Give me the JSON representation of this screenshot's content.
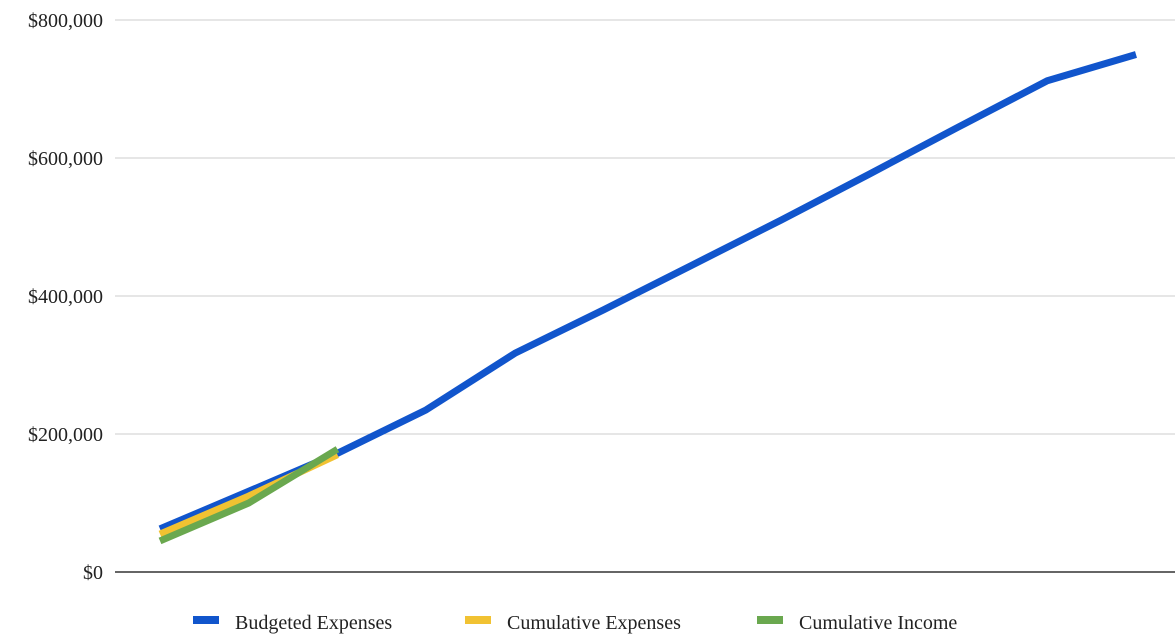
{
  "chart_data": {
    "type": "line",
    "title": "",
    "xlabel": "",
    "ylabel": "",
    "ylim": [
      0,
      800000
    ],
    "yticks": [
      0,
      200000,
      400000,
      600000,
      800000
    ],
    "ytick_labels": [
      "$0",
      "$200,000",
      "$400,000",
      "$600,000",
      "$800,000"
    ],
    "grid": true,
    "legend_position": "bottom",
    "x_count": 12,
    "series": [
      {
        "name": "Budgeted Expenses",
        "color": "#1155cc",
        "values": [
          62500,
          117000,
          172000,
          235000,
          317000,
          380000,
          445000,
          510000,
          577000,
          645000,
          712000,
          750000
        ]
      },
      {
        "name": "Cumulative Expenses",
        "color": "#f1c232",
        "values": [
          55000,
          110000,
          170000
        ]
      },
      {
        "name": "Cumulative Income",
        "color": "#6aa84f",
        "values": [
          45000,
          100000,
          178000
        ]
      }
    ]
  }
}
